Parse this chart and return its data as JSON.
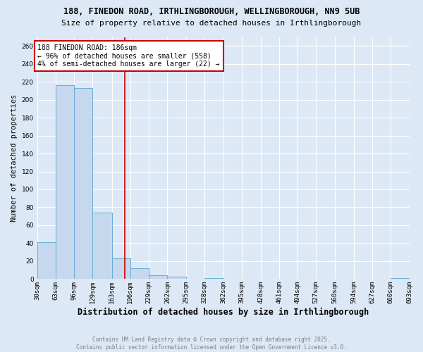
{
  "title_line1": "188, FINEDON ROAD, IRTHLINGBOROUGH, WELLINGBOROUGH, NN9 5UB",
  "title_line2": "Size of property relative to detached houses in Irthlingborough",
  "xlabel": "Distribution of detached houses by size in Irthlingborough",
  "ylabel": "Number of detached properties",
  "annotation_line1": "188 FINEDON ROAD: 186sqm",
  "annotation_line2": "← 96% of detached houses are smaller (558)",
  "annotation_line3": "4% of semi-detached houses are larger (22) →",
  "property_size": 186,
  "footer_line1": "Contains HM Land Registry data © Crown copyright and database right 2025.",
  "footer_line2": "Contains public sector information licensed under the Open Government Licence v3.0.",
  "bin_edges": [
    30,
    63,
    96,
    129,
    163,
    196,
    229,
    262,
    295,
    328,
    362,
    395,
    428,
    461,
    494,
    527,
    560,
    594,
    627,
    660,
    693
  ],
  "bar_heights": [
    41,
    216,
    213,
    74,
    23,
    12,
    4,
    3,
    0,
    1,
    0,
    0,
    0,
    0,
    0,
    0,
    0,
    0,
    0,
    1
  ],
  "bar_color": "#c5d8ee",
  "bar_edge_color": "#6aadd5",
  "vline_color": "#cc0000",
  "vline_x": 186,
  "annotation_box_facecolor": "#ffffff",
  "annotation_box_edgecolor": "#cc0000",
  "background_color": "#dce8f5",
  "grid_color": "#ffffff",
  "ylim": [
    0,
    270
  ],
  "yticks": [
    0,
    20,
    40,
    60,
    80,
    100,
    120,
    140,
    160,
    180,
    200,
    220,
    240,
    260
  ],
  "footer_color": "#808080",
  "title_fontsize": 8.5,
  "subtitle_fontsize": 8.0,
  "ylabel_fontsize": 7.5,
  "xlabel_fontsize": 8.5,
  "tick_fontsize": 6.5,
  "annotation_fontsize": 7.0,
  "footer_fontsize": 5.5
}
